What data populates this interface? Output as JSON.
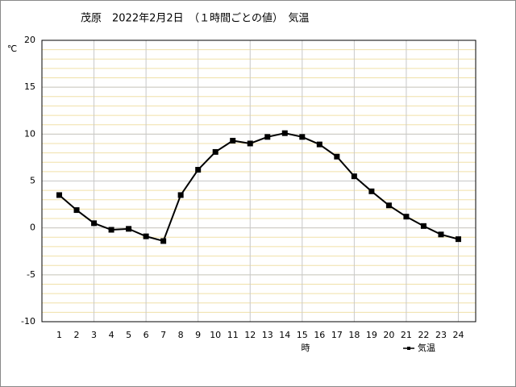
{
  "chart_data": {
    "type": "line",
    "title": "茂原　2022年2月2日　（１時間ごとの値）　気温",
    "y_label": "℃",
    "x_label": "時",
    "x": [
      1,
      2,
      3,
      4,
      5,
      6,
      7,
      8,
      9,
      10,
      11,
      12,
      13,
      14,
      15,
      16,
      17,
      18,
      19,
      20,
      21,
      22,
      23,
      24
    ],
    "xlim": [
      0,
      25
    ],
    "xticks": [
      1,
      2,
      3,
      4,
      5,
      6,
      7,
      8,
      9,
      10,
      11,
      12,
      13,
      14,
      15,
      16,
      17,
      18,
      19,
      20,
      21,
      22,
      23,
      24
    ],
    "xgrid_every": 3,
    "ylim": [
      -10,
      20
    ],
    "yticks": [
      -10,
      -5,
      0,
      5,
      10,
      15,
      20
    ],
    "minor_grid_step": 1,
    "grid": true,
    "series": [
      {
        "name": "気温",
        "color": "#000000",
        "values": [
          3.5,
          1.9,
          0.5,
          -0.2,
          -0.1,
          -0.9,
          -1.4,
          3.5,
          6.2,
          8.1,
          9.3,
          9.0,
          9.7,
          10.1,
          9.7,
          8.9,
          7.6,
          5.5,
          3.9,
          2.4,
          1.2,
          0.2,
          -0.7,
          -1.2
        ]
      }
    ]
  }
}
